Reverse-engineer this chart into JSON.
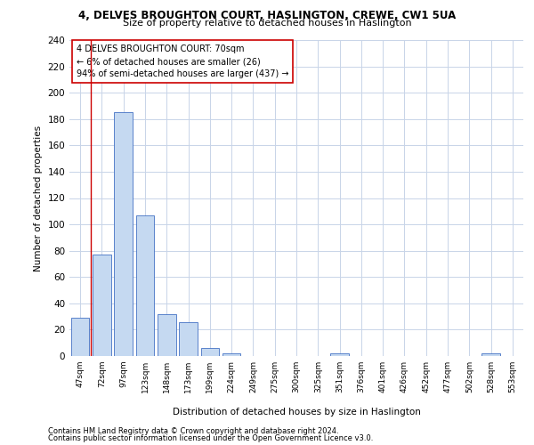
{
  "title_line1": "4, DELVES BROUGHTON COURT, HASLINGTON, CREWE, CW1 5UA",
  "title_line2": "Size of property relative to detached houses in Haslington",
  "xlabel": "Distribution of detached houses by size in Haslington",
  "ylabel": "Number of detached properties",
  "bar_color": "#c5d9f1",
  "bar_edge_color": "#4472c4",
  "categories": [
    "47sqm",
    "72sqm",
    "97sqm",
    "123sqm",
    "148sqm",
    "173sqm",
    "199sqm",
    "224sqm",
    "249sqm",
    "275sqm",
    "300sqm",
    "325sqm",
    "351sqm",
    "376sqm",
    "401sqm",
    "426sqm",
    "452sqm",
    "477sqm",
    "502sqm",
    "528sqm",
    "553sqm"
  ],
  "values": [
    29,
    77,
    185,
    107,
    32,
    26,
    6,
    2,
    0,
    0,
    0,
    0,
    2,
    0,
    0,
    0,
    0,
    0,
    0,
    2,
    0
  ],
  "ylim": [
    0,
    240
  ],
  "yticks": [
    0,
    20,
    40,
    60,
    80,
    100,
    120,
    140,
    160,
    180,
    200,
    220,
    240
  ],
  "annotation_box_text": "4 DELVES BROUGHTON COURT: 70sqm\n← 6% of detached houses are smaller (26)\n94% of semi-detached houses are larger (437) →",
  "vline_color": "#cc0000",
  "bg_color": "#ffffff",
  "grid_color": "#c8d4e8",
  "footer_line1": "Contains HM Land Registry data © Crown copyright and database right 2024.",
  "footer_line2": "Contains public sector information licensed under the Open Government Licence v3.0."
}
